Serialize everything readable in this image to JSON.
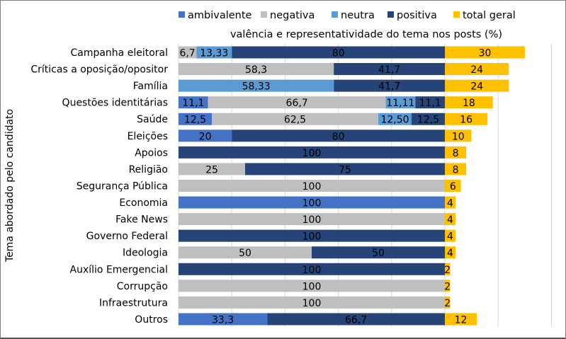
{
  "chart_data": {
    "type": "bar",
    "orientation": "horizontal",
    "stacked": true,
    "title": "valência e representatividade do tema nos posts (%)",
    "ylabel": "Tema abordado pelo candidato",
    "xlabel": "",
    "xlim": [
      0,
      140
    ],
    "grid": true,
    "legend_placement": "top",
    "categories": [
      "Campanha eleitoral",
      "Críticas a oposição/opositor",
      "Família",
      "Questões identitárias",
      "Saúde",
      "Eleições",
      "Apoios",
      "Religião",
      "Segurança Pública",
      "Economia",
      "Fake News",
      "Governo Federal",
      "Ideologia",
      "Auxílio Emergencial",
      "Corrupção",
      "Infraestrutura",
      "Outros"
    ],
    "series": [
      {
        "name": "ambivalente",
        "color": "#4472C4",
        "values": [
          0,
          0,
          0,
          11.1,
          12.5,
          20,
          0,
          0,
          0,
          100,
          0,
          0,
          0,
          0,
          0,
          0,
          33.3
        ],
        "labels": [
          "",
          "",
          "",
          "11,1",
          "12,5",
          "20",
          "",
          "",
          "",
          "100",
          "",
          "",
          "",
          "",
          "",
          "",
          "33,3"
        ]
      },
      {
        "name": "negativa",
        "color": "#BFBFBF",
        "values": [
          6.7,
          58.3,
          0,
          66.7,
          62.5,
          0,
          0,
          25,
          100,
          0,
          100,
          0,
          50,
          0,
          100,
          100,
          0
        ],
        "labels": [
          "6,7",
          "58,3",
          "",
          "66,7",
          "62,5",
          "",
          "",
          "25",
          "100",
          "",
          "100",
          "",
          "50",
          "",
          "100",
          "100",
          ""
        ]
      },
      {
        "name": "neutra",
        "color": "#5B9BD5",
        "values": [
          13.33,
          0,
          58.33,
          11.11,
          12.5,
          0,
          0,
          0,
          0,
          0,
          0,
          0,
          0,
          0,
          0,
          0,
          0
        ],
        "labels": [
          "13,33",
          "",
          "58,33",
          "11,11",
          "12,50",
          "",
          "",
          "",
          "",
          "",
          "",
          "",
          "",
          "",
          "",
          "",
          ""
        ]
      },
      {
        "name": "positiva",
        "color": "#264478",
        "values": [
          80,
          41.7,
          41.7,
          11.1,
          12.5,
          80,
          100,
          75,
          0,
          0,
          0,
          100,
          50,
          100,
          0,
          0,
          66.7
        ],
        "labels": [
          "80",
          "41,7",
          "41,7",
          "11,1",
          "12,5",
          "80",
          "100",
          "75",
          "",
          "",
          "",
          "100",
          "50",
          "100",
          "",
          "",
          "66,7"
        ]
      },
      {
        "name": "total geral",
        "color": "#FFC000",
        "values": [
          30,
          24,
          24,
          18,
          16,
          10,
          8,
          8,
          6,
          4,
          4,
          4,
          4,
          2,
          2,
          2,
          12
        ],
        "labels": [
          "30",
          "24",
          "24",
          "18",
          "16",
          "10",
          "8",
          "8",
          "6",
          "4",
          "4",
          "4",
          "4",
          "2",
          "2",
          "2",
          "12"
        ]
      }
    ]
  }
}
